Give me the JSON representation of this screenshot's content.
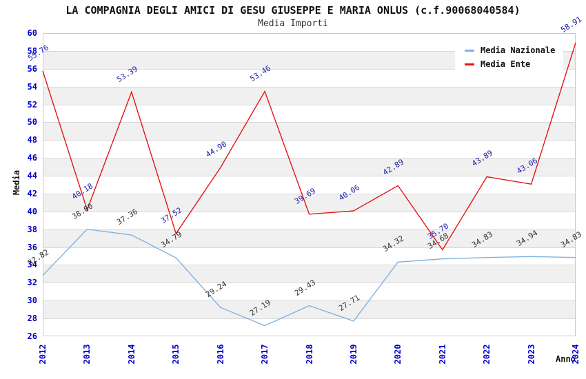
{
  "chart_data": {
    "type": "line",
    "title": "LA COMPAGNIA DEGLI AMICI DI GESU GIUSEPPE E MARIA ONLUS (c.f.90068040584)",
    "subtitle": "Media Importi",
    "xlabel": "Anno",
    "ylabel": "Media",
    "categories": [
      "2012",
      "2013",
      "2014",
      "2015",
      "2016",
      "2017",
      "2018",
      "2019",
      "2020",
      "2021",
      "2022",
      "2023",
      "2024"
    ],
    "series": [
      {
        "name": "Media Nazionale",
        "color": "#7fb2e2",
        "label_color": "#333333",
        "values": [
          32.82,
          38.0,
          37.36,
          34.79,
          29.24,
          27.19,
          29.43,
          27.71,
          34.32,
          34.68,
          34.83,
          34.94,
          34.83
        ]
      },
      {
        "name": "Media Ente",
        "color": "#e81313",
        "label_color": "#2222aa",
        "values": [
          55.76,
          40.18,
          53.39,
          37.52,
          44.9,
          53.46,
          39.69,
          40.06,
          42.89,
          35.7,
          43.89,
          43.06,
          58.91
        ]
      }
    ],
    "ylim": [
      26,
      60
    ],
    "ytick_step": 2,
    "grid": true,
    "band_colors": [
      "#ffffff",
      "#f0f0f0"
    ],
    "axis_tick_color": "#0000cc",
    "legend_position": "top-right"
  }
}
